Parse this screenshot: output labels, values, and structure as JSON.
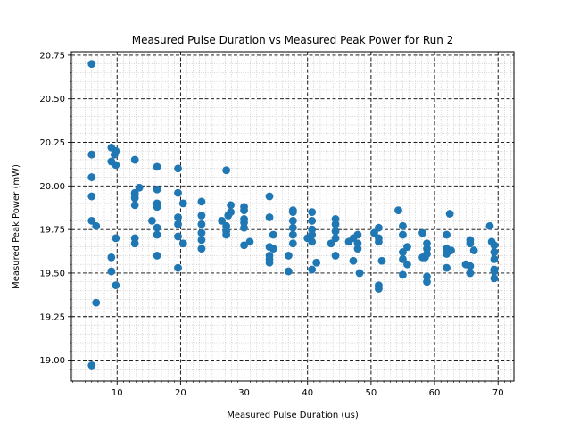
{
  "chart_data": {
    "type": "scatter",
    "title": "Measured Pulse Duration vs Measured Peak Power for Run 2",
    "xlabel": "Measured Pulse Duration (us)",
    "ylabel": "Measured Peak Power (mW)",
    "xlim": [
      2.8,
      72.5
    ],
    "ylim": [
      18.88,
      20.77
    ],
    "xticks": [
      10,
      20,
      30,
      40,
      50,
      60,
      70
    ],
    "yticks": [
      19.0,
      19.25,
      19.5,
      19.75,
      20.0,
      20.25,
      20.5,
      20.75
    ],
    "xtick_labels": [
      "10",
      "20",
      "30",
      "40",
      "50",
      "60",
      "70"
    ],
    "ytick_labels": [
      "19.00",
      "19.25",
      "19.50",
      "19.75",
      "20.00",
      "20.25",
      "20.50",
      "20.75"
    ],
    "grid": true,
    "minor_grid": true,
    "marker_color": "#1f77b4",
    "x": [
      6.0,
      6.0,
      6.0,
      6.0,
      6.0,
      6.0,
      6.7,
      6.7,
      9.1,
      9.1,
      9.1,
      9.1,
      9.8,
      9.8,
      9.8,
      9.8,
      9.6,
      12.8,
      12.8,
      12.8,
      12.8,
      12.8,
      12.8,
      12.8,
      13.5,
      15.5,
      16.3,
      16.3,
      16.3,
      16.3,
      16.3,
      16.3,
      16.3,
      19.6,
      19.6,
      19.6,
      19.6,
      19.6,
      19.6,
      20.4,
      20.4,
      23.3,
      23.3,
      23.3,
      23.3,
      23.3,
      23.3,
      26.5,
      27.2,
      27.2,
      27.2,
      27.2,
      27.9,
      27.9,
      27.5,
      30.0,
      30.0,
      30.0,
      30.0,
      30.0,
      30.0,
      30.9,
      34.0,
      34.0,
      34.0,
      34.0,
      34.0,
      34.0,
      34.6,
      34.6,
      37.0,
      37.0,
      37.7,
      37.7,
      37.7,
      37.7,
      37.7,
      37.7,
      40.0,
      40.7,
      40.7,
      40.7,
      40.7,
      40.7,
      41.4,
      40.7,
      43.7,
      44.4,
      44.4,
      44.4,
      44.4,
      44.4,
      46.5,
      47.2,
      47.2,
      47.9,
      47.9,
      48.2,
      47.9,
      50.5,
      51.2,
      51.2,
      51.2,
      51.2,
      51.2,
      51.7,
      54.3,
      55.0,
      55.0,
      55.0,
      55.0,
      55.0,
      55.7,
      55.7,
      58.1,
      58.1,
      58.5,
      58.8,
      58.8,
      58.8,
      58.8,
      58.8,
      61.9,
      61.9,
      61.9,
      61.9,
      62.4,
      62.6,
      64.9,
      65.6,
      65.6,
      65.6,
      65.6,
      66.2,
      68.7,
      69.0,
      69.4,
      69.4,
      69.4,
      69.4,
      69.4,
      69.4
    ],
    "y": [
      20.7,
      20.18,
      20.05,
      19.94,
      19.8,
      18.97,
      19.77,
      19.33,
      20.22,
      20.14,
      19.59,
      19.51,
      20.2,
      20.12,
      19.7,
      19.43,
      20.18,
      20.15,
      19.96,
      19.93,
      19.89,
      19.7,
      19.67,
      19.95,
      19.99,
      19.8,
      20.11,
      19.98,
      19.9,
      19.88,
      19.76,
      19.72,
      19.6,
      20.1,
      19.96,
      19.82,
      19.78,
      19.71,
      19.53,
      19.9,
      19.67,
      19.91,
      19.83,
      19.78,
      19.73,
      19.69,
      19.64,
      19.8,
      20.09,
      19.77,
      19.74,
      19.72,
      19.89,
      19.85,
      19.83,
      19.88,
      19.86,
      19.81,
      19.79,
      19.76,
      19.66,
      19.68,
      19.94,
      19.82,
      19.65,
      19.6,
      19.58,
      19.56,
      19.72,
      19.64,
      19.6,
      19.51,
      19.86,
      19.85,
      19.8,
      19.76,
      19.72,
      19.67,
      19.7,
      19.85,
      19.8,
      19.75,
      19.72,
      19.68,
      19.56,
      19.52,
      19.67,
      19.81,
      19.78,
      19.74,
      19.7,
      19.6,
      19.68,
      19.7,
      19.57,
      19.72,
      19.67,
      19.5,
      19.64,
      19.73,
      19.76,
      19.7,
      19.68,
      19.43,
      19.41,
      19.57,
      19.86,
      19.77,
      19.72,
      19.62,
      19.58,
      19.49,
      19.65,
      19.55,
      19.73,
      19.59,
      19.59,
      19.67,
      19.64,
      19.61,
      19.48,
      19.45,
      19.72,
      19.64,
      19.61,
      19.53,
      19.84,
      19.63,
      19.55,
      19.69,
      19.67,
      19.54,
      19.5,
      19.63,
      19.77,
      19.68,
      19.66,
      19.62,
      19.58,
      19.52,
      19.51,
      19.47
    ]
  }
}
